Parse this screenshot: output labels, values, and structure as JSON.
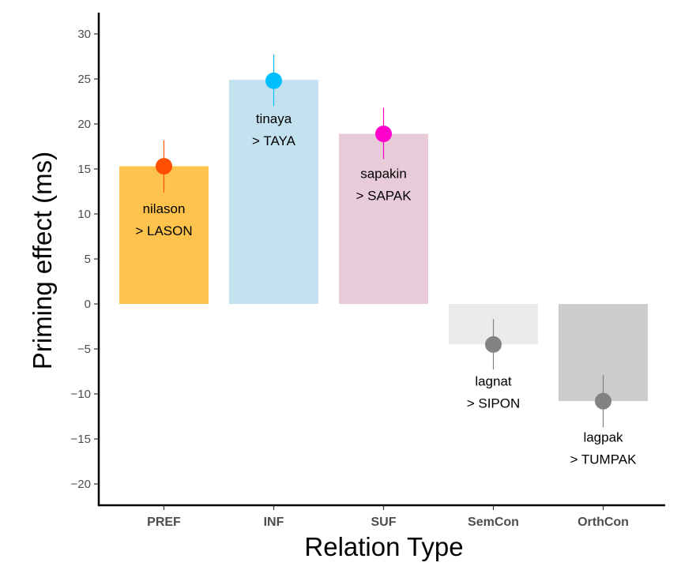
{
  "chart_data": {
    "type": "bar",
    "title": "",
    "xlabel": "Relation Type",
    "ylabel": "Priming effect (ms)",
    "ylim": [
      -22,
      32.5
    ],
    "yticks": [
      -20,
      -15,
      -10,
      -5,
      0,
      5,
      10,
      15,
      20,
      25,
      30
    ],
    "ytick_labels": [
      "−20",
      "−15",
      "−10",
      "−5",
      "0",
      "5",
      "10",
      "15",
      "20",
      "25",
      "30"
    ],
    "categories": [
      "PREF",
      "INF",
      "SUF",
      "SemCon",
      "OrthCon"
    ],
    "values": [
      15.3,
      24.9,
      18.9,
      -4.5,
      -10.8
    ],
    "points": [
      15.3,
      24.8,
      18.9,
      -4.5,
      -10.8
    ],
    "error_low": [
      12.4,
      22.0,
      16.1,
      -7.3,
      -13.7
    ],
    "error_high": [
      18.2,
      27.7,
      21.8,
      -1.7,
      -7.9
    ],
    "bar_colors": [
      "#fdc34d",
      "#c4e1f0",
      "#e8cbd9",
      "#ebebeb",
      "#cccccc"
    ],
    "point_colors": [
      "#ff4f00",
      "#00bfff",
      "#ff00cc",
      "#828282",
      "#828282"
    ],
    "annotations": [
      {
        "line1": "nilason",
        "line2": "> LASON",
        "y": 10.1
      },
      {
        "line1": "tinaya",
        "line2": "> TAYA",
        "y": 20.1
      },
      {
        "line1": "sapakin",
        "line2": "> SAPAK",
        "y": 14.0
      },
      {
        "line1": "lagnat",
        "line2": "> SIPON",
        "y": -9.1
      },
      {
        "line1": "lagpak",
        "line2": "> TUMPAK",
        "y": -15.3
      }
    ],
    "grid": false,
    "legend": "none"
  }
}
